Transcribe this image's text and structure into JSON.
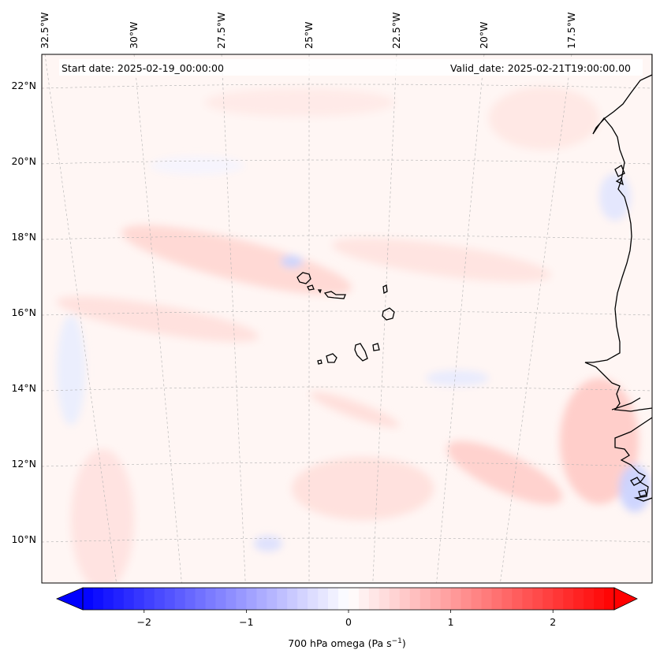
{
  "map": {
    "projection": "Lambert conformal",
    "extent": {
      "lon_min": -33.0,
      "lon_max": -15.5,
      "lat_min": 8.8,
      "lat_max": 22.8
    },
    "lon_ticks": [
      {
        "value": -32.5,
        "label": "32.5°W"
      },
      {
        "value": -30.0,
        "label": "30°W"
      },
      {
        "value": -27.5,
        "label": "27.5°W"
      },
      {
        "value": -25.0,
        "label": "25°W"
      },
      {
        "value": -22.5,
        "label": "22.5°W"
      },
      {
        "value": -20.0,
        "label": "20°W"
      },
      {
        "value": -17.5,
        "label": "17.5°W"
      }
    ],
    "lat_ticks": [
      {
        "value": 22,
        "label": "22°N"
      },
      {
        "value": 20,
        "label": "20°N"
      },
      {
        "value": 18,
        "label": "18°N"
      },
      {
        "value": 16,
        "label": "16°N"
      },
      {
        "value": 14,
        "label": "14°N"
      },
      {
        "value": 12,
        "label": "12°N"
      },
      {
        "value": 10,
        "label": "10°N"
      }
    ],
    "gridlines": true,
    "field": "700 hPa omega",
    "features": [
      "Cape Verde islands",
      "West African coastline"
    ]
  },
  "annotations": {
    "start_date": "Start date: 2025-02-19_00:00:00",
    "valid_date": "Valid_date: 2025-02-21T19:00:00.00"
  },
  "colorbar": {
    "cmap": "bwr",
    "range": [
      -2.6,
      2.6
    ],
    "extend": "both",
    "ticks": [
      {
        "value": -2,
        "label": "−2"
      },
      {
        "value": -1,
        "label": "−1"
      },
      {
        "value": 0,
        "label": "0"
      },
      {
        "value": 1,
        "label": "1"
      },
      {
        "value": 2,
        "label": "2"
      }
    ],
    "label_main": "700 hPa omega (Pa s",
    "label_exp": "−1",
    "label_close": ")",
    "colors": {
      "low": "#0000ff",
      "mid": "#ffffff",
      "high": "#ff0000"
    }
  }
}
